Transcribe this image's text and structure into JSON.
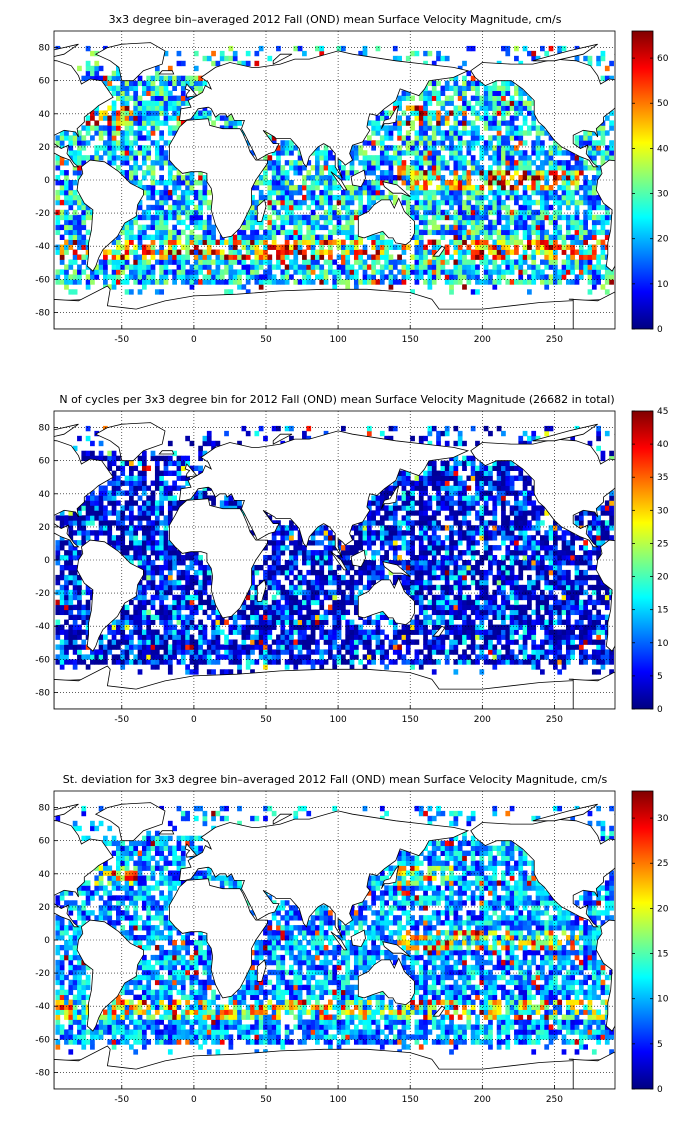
{
  "chart_data": [
    {
      "type": "heatmap",
      "title": "3x3 degree bin–averaged 2012 Fall (OND) mean Surface Velocity Magnitude, cm/s",
      "x_ticks": [
        "-50",
        "0",
        "50",
        "100",
        "150",
        "200",
        "250"
      ],
      "y_ticks": [
        "80",
        "60",
        "40",
        "20",
        "0",
        "-20",
        "-40",
        "-60",
        "-80"
      ],
      "xlim": [
        -97,
        292
      ],
      "ylim": [
        -90,
        90
      ],
      "colorbar_ticks": [
        "60",
        "50",
        "40",
        "30",
        "20",
        "10",
        "0"
      ],
      "colorbar_range": [
        0,
        66
      ],
      "grid": true,
      "colormap": "jet",
      "seed": 11,
      "median": 22
    },
    {
      "type": "heatmap",
      "title": "N of cycles per 3x3 degree bin for 2012 Fall (OND) mean Surface Velocity Magnitude (26682 in total)",
      "x_ticks": [
        "-50",
        "0",
        "50",
        "100",
        "150",
        "200",
        "250"
      ],
      "y_ticks": [
        "80",
        "60",
        "40",
        "20",
        "0",
        "-20",
        "-40",
        "-60",
        "-80"
      ],
      "xlim": [
        -97,
        292
      ],
      "ylim": [
        -90,
        90
      ],
      "colorbar_ticks": [
        "45",
        "40",
        "35",
        "30",
        "25",
        "20",
        "15",
        "10",
        "5",
        "0"
      ],
      "colorbar_range": [
        0,
        45
      ],
      "grid": true,
      "colormap": "jet",
      "seed": 23,
      "median": 6
    },
    {
      "type": "heatmap",
      "title": "St. deviation for 3x3 degree bin–averaged 2012 Fall (OND) mean Surface Velocity Magnitude, cm/s",
      "x_ticks": [
        "-50",
        "0",
        "50",
        "100",
        "150",
        "200",
        "250"
      ],
      "y_ticks": [
        "80",
        "60",
        "40",
        "20",
        "0",
        "-20",
        "-40",
        "-60",
        "-80"
      ],
      "xlim": [
        -97,
        292
      ],
      "ylim": [
        -90,
        90
      ],
      "colorbar_ticks": [
        "30",
        "25",
        "20",
        "15",
        "10",
        "5",
        "0"
      ],
      "colorbar_range": [
        0,
        33
      ],
      "grid": true,
      "colormap": "jet",
      "seed": 37,
      "median": 9
    }
  ]
}
